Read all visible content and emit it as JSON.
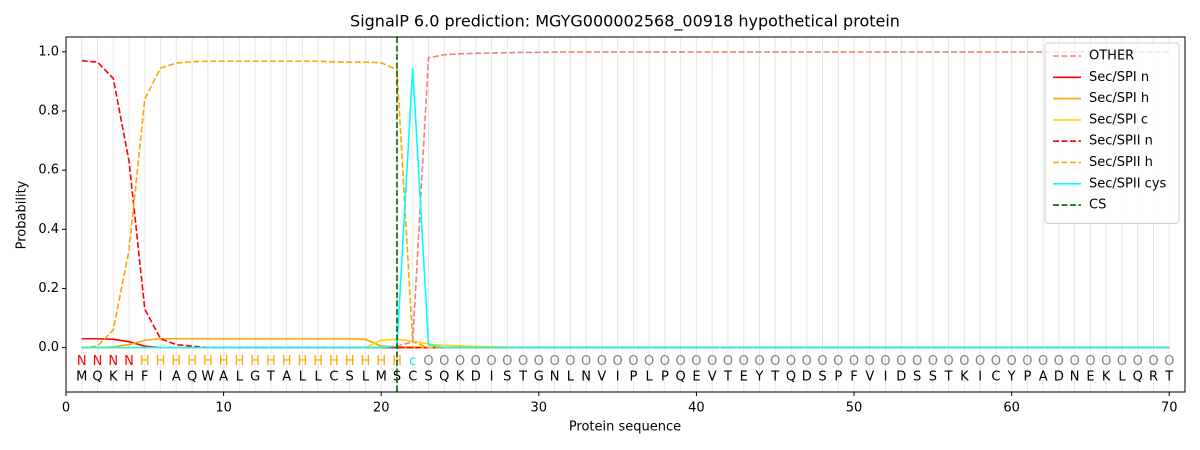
{
  "chart_data": {
    "type": "line",
    "title": "SignalP 6.0 prediction: MGYG000002568_00918 hypothetical protein",
    "xlabel": "Protein sequence",
    "ylabel": "Probability",
    "xlim": [
      0,
      71
    ],
    "ylim": [
      -0.15,
      1.05
    ],
    "xticks": [
      0,
      10,
      20,
      30,
      40,
      50,
      60,
      70
    ],
    "yticks": [
      {
        "value": 0,
        "label": "0.0"
      },
      {
        "value": 0.2,
        "label": "0.2"
      },
      {
        "value": 0.4,
        "label": "0.4"
      },
      {
        "value": 0.6,
        "label": "0.6"
      },
      {
        "value": 0.8,
        "label": "0.8"
      },
      {
        "value": 1,
        "label": "1.0"
      }
    ],
    "x": [
      1,
      2,
      3,
      4,
      5,
      6,
      7,
      8,
      9,
      10,
      11,
      12,
      13,
      14,
      15,
      16,
      17,
      18,
      19,
      20,
      21,
      22,
      23,
      24,
      25,
      26,
      27,
      28,
      29,
      30,
      31,
      32,
      33,
      34,
      35,
      36,
      37,
      38,
      39,
      40,
      41,
      42,
      43,
      44,
      45,
      46,
      47,
      48,
      49,
      50,
      51,
      52,
      53,
      54,
      55,
      56,
      57,
      58,
      59,
      60,
      61,
      62,
      63,
      64,
      65,
      66,
      67,
      68,
      69,
      70
    ],
    "sequence": [
      "M",
      "Q",
      "K",
      "H",
      "F",
      "I",
      "A",
      "Q",
      "W",
      "A",
      "L",
      "G",
      "T",
      "A",
      "L",
      "L",
      "C",
      "S",
      "L",
      "M",
      "S",
      "C",
      "S",
      "Q",
      "K",
      "D",
      "I",
      "S",
      "T",
      "G",
      "N",
      "L",
      "N",
      "V",
      "I",
      "P",
      "L",
      "P",
      "Q",
      "E",
      "V",
      "T",
      "E",
      "Y",
      "T",
      "Q",
      "D",
      "S",
      "P",
      "F",
      "V",
      "I",
      "D",
      "S",
      "S",
      "T",
      "K",
      "I",
      "C",
      "Y",
      "P",
      "A",
      "D",
      "N",
      "E",
      "K",
      "L",
      "Q",
      "R",
      "T"
    ],
    "region_labels": [
      "N",
      "N",
      "N",
      "N",
      "H",
      "H",
      "H",
      "H",
      "H",
      "H",
      "H",
      "H",
      "H",
      "H",
      "H",
      "H",
      "H",
      "H",
      "H",
      "H",
      "H",
      "c",
      "O",
      "O",
      "O",
      "O",
      "O",
      "O",
      "O",
      "O",
      "O",
      "O",
      "O",
      "O",
      "O",
      "O",
      "O",
      "O",
      "O",
      "O",
      "O",
      "O",
      "O",
      "O",
      "O",
      "O",
      "O",
      "O",
      "O",
      "O",
      "O",
      "O",
      "O",
      "O",
      "O",
      "O",
      "O",
      "O",
      "O",
      "O",
      "O",
      "O",
      "O",
      "O",
      "O",
      "O",
      "O",
      "O",
      "O",
      "O"
    ],
    "region_colors": {
      "N": "#ff0000",
      "H": "#ffa500",
      "c": "#00e5e5",
      "O": "#808080"
    },
    "legend": "upper right",
    "series": [
      {
        "name": "OTHER",
        "color": "#f08080",
        "linestyle": "dashed",
        "values": [
          0,
          0,
          0,
          0,
          0,
          0,
          0,
          0,
          0,
          0,
          0,
          0,
          0,
          0,
          0,
          0,
          0,
          0,
          0,
          0,
          0.005,
          0.02,
          0.98,
          0.99,
          0.993,
          0.995,
          0.996,
          0.997,
          0.998,
          0.998,
          0.999,
          0.999,
          0.999,
          0.999,
          0.999,
          0.999,
          0.999,
          0.999,
          0.999,
          0.999,
          0.999,
          0.999,
          0.999,
          0.999,
          0.999,
          0.999,
          0.999,
          0.999,
          0.999,
          0.999,
          0.999,
          0.999,
          0.999,
          0.999,
          0.999,
          0.999,
          0.999,
          0.999,
          0.999,
          0.999,
          0.999,
          0.999,
          0.999,
          0.999,
          0.999,
          0.999,
          0.999,
          0.999,
          0.999,
          0.999
        ]
      },
      {
        "name": "Sec/SPI n",
        "color": "#ff0000",
        "linestyle": "solid",
        "values": [
          0.03,
          0.03,
          0.028,
          0.02,
          0.005,
          0,
          0,
          0,
          0,
          0,
          0,
          0,
          0,
          0,
          0,
          0,
          0,
          0,
          0,
          0,
          0,
          0,
          0,
          0,
          0,
          0,
          0,
          0,
          0,
          0,
          0,
          0,
          0,
          0,
          0,
          0,
          0,
          0,
          0,
          0,
          0,
          0,
          0,
          0,
          0,
          0,
          0,
          0,
          0,
          0,
          0,
          0,
          0,
          0,
          0,
          0,
          0,
          0,
          0,
          0,
          0,
          0,
          0,
          0,
          0,
          0,
          0,
          0,
          0,
          0
        ]
      },
      {
        "name": "Sec/SPI h",
        "color": "#ffa500",
        "linestyle": "solid",
        "values": [
          0,
          0,
          0.003,
          0.01,
          0.025,
          0.03,
          0.03,
          0.03,
          0.03,
          0.03,
          0.03,
          0.03,
          0.03,
          0.03,
          0.03,
          0.03,
          0.03,
          0.03,
          0.028,
          0.005,
          0.003,
          0.002,
          0,
          0,
          0,
          0,
          0,
          0,
          0,
          0,
          0,
          0,
          0,
          0,
          0,
          0,
          0,
          0,
          0,
          0,
          0,
          0,
          0,
          0,
          0,
          0,
          0,
          0,
          0,
          0,
          0,
          0,
          0,
          0,
          0,
          0,
          0,
          0,
          0,
          0,
          0,
          0,
          0,
          0,
          0,
          0,
          0,
          0,
          0,
          0
        ]
      },
      {
        "name": "Sec/SPI c",
        "color": "#ffd700",
        "linestyle": "solid",
        "values": [
          0,
          0,
          0,
          0,
          0,
          0,
          0,
          0,
          0,
          0,
          0,
          0,
          0,
          0,
          0,
          0,
          0,
          0,
          0,
          0.025,
          0.028,
          0.022,
          0.012,
          0.008,
          0.006,
          0.004,
          0.003,
          0.002,
          0,
          0,
          0,
          0,
          0,
          0,
          0,
          0,
          0,
          0,
          0,
          0,
          0,
          0,
          0,
          0,
          0,
          0,
          0,
          0,
          0,
          0,
          0,
          0,
          0,
          0,
          0,
          0,
          0,
          0,
          0,
          0,
          0,
          0,
          0,
          0,
          0,
          0,
          0,
          0,
          0,
          0
        ]
      },
      {
        "name": "Sec/SPII n",
        "color": "#ff0000",
        "linestyle": "dashed",
        "values": [
          0.97,
          0.965,
          0.91,
          0.63,
          0.13,
          0.03,
          0.01,
          0.005,
          0,
          0,
          0,
          0,
          0,
          0,
          0,
          0,
          0,
          0,
          0,
          0,
          0,
          0,
          0,
          0,
          0,
          0,
          0,
          0,
          0,
          0,
          0,
          0,
          0,
          0,
          0,
          0,
          0,
          0,
          0,
          0,
          0,
          0,
          0,
          0,
          0,
          0,
          0,
          0,
          0,
          0,
          0,
          0,
          0,
          0,
          0,
          0,
          0,
          0,
          0,
          0,
          0,
          0,
          0,
          0,
          0,
          0,
          0,
          0,
          0,
          0
        ]
      },
      {
        "name": "Sec/SPII h",
        "color": "#ffa500",
        "linestyle": "dashed",
        "values": [
          0,
          0.005,
          0.06,
          0.33,
          0.84,
          0.945,
          0.962,
          0.967,
          0.968,
          0.968,
          0.968,
          0.968,
          0.968,
          0.968,
          0.968,
          0.968,
          0.966,
          0.965,
          0.965,
          0.963,
          0.94,
          0.02,
          0,
          0,
          0,
          0,
          0,
          0,
          0,
          0,
          0,
          0,
          0,
          0,
          0,
          0,
          0,
          0,
          0,
          0,
          0,
          0,
          0,
          0,
          0,
          0,
          0,
          0,
          0,
          0,
          0,
          0,
          0,
          0,
          0,
          0,
          0,
          0,
          0,
          0,
          0,
          0,
          0,
          0,
          0,
          0,
          0,
          0,
          0,
          0
        ]
      },
      {
        "name": "Sec/SPII cys",
        "color": "#00ffff",
        "linestyle": "solid",
        "values": [
          0,
          0,
          0,
          0,
          0,
          0,
          0,
          0,
          0,
          0,
          0,
          0,
          0,
          0,
          0,
          0,
          0,
          0,
          0,
          0,
          0.005,
          0.945,
          0.01,
          0,
          0,
          0,
          0,
          0,
          0,
          0,
          0,
          0,
          0,
          0,
          0,
          0,
          0,
          0,
          0,
          0,
          0,
          0,
          0,
          0,
          0,
          0,
          0,
          0,
          0,
          0,
          0,
          0,
          0,
          0,
          0,
          0,
          0,
          0,
          0,
          0,
          0,
          0,
          0,
          0,
          0,
          0,
          0,
          0,
          0,
          0
        ]
      }
    ],
    "cleavage_site": {
      "name": "CS",
      "color": "#006400",
      "x": 21
    }
  }
}
